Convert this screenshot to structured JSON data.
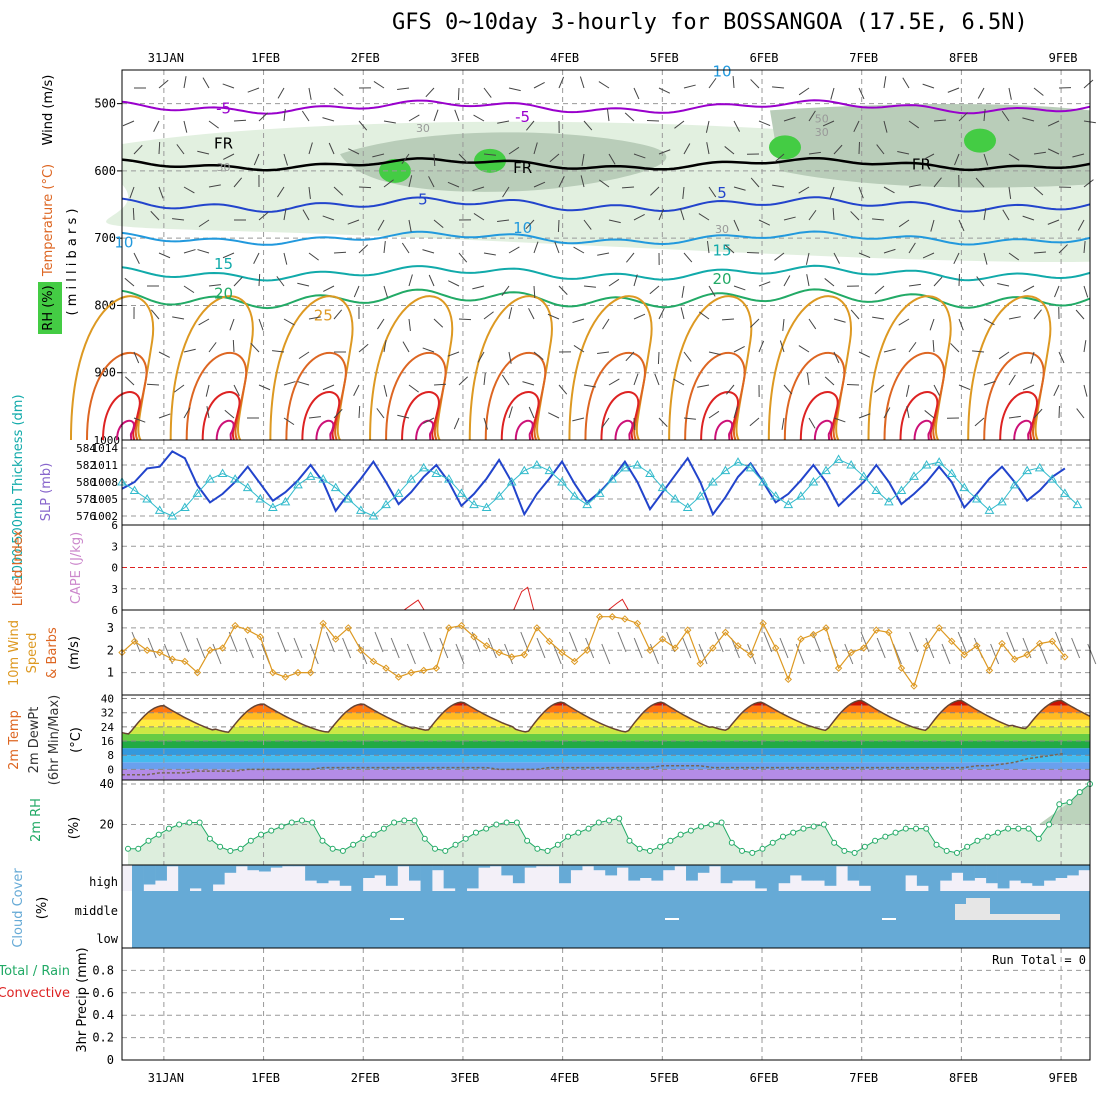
{
  "title": "GFS 0~10day 3-hourly for BOSSANGOA (17.5E, 6.5N)",
  "colors": {
    "purple": "#9900cc",
    "blue": "#2244cc",
    "lightblue": "#2299dd",
    "teal": "#11aaaa",
    "green": "#22aa66",
    "orange": "#dd9922",
    "darkorange": "#dd6622",
    "red": "#dd2222",
    "rhgreen": "#44cc44",
    "cyan": "#33bbcc",
    "cloud": "#66aad6",
    "cloudbg": "#f3f0f8"
  },
  "chart_data": [
    {
      "id": "upper-air",
      "type": "contour",
      "ylabel_parts": [
        "Wind (m/s)",
        "Temperature (°C)"
      ],
      "ylabel2": "( m i l l i b a r s )",
      "rh_label": "RH (%)",
      "yticks": [
        500,
        600,
        700,
        800,
        900,
        1000
      ],
      "ylim": [
        1000,
        450
      ],
      "temperature_labels": [
        {
          "text": "-5",
          "date": "1FEB",
          "p": 515
        },
        {
          "text": "-5",
          "date": "4FEB",
          "p": 527
        },
        {
          "text": "FR",
          "date": "1FEB",
          "p": 567
        },
        {
          "text": "FR",
          "date": "4FEB",
          "p": 603
        },
        {
          "text": "FR",
          "date": "8FEB",
          "p": 598
        },
        {
          "text": "5",
          "date": "3FEB",
          "p": 650
        },
        {
          "text": "5",
          "date": "6FEB",
          "p": 640
        },
        {
          "text": "10",
          "date": "31JAN",
          "p": 714
        },
        {
          "text": "10",
          "date": "4FEB",
          "p": 692
        },
        {
          "text": "15",
          "date": "1FEB",
          "p": 746
        },
        {
          "text": "15",
          "date": "6FEB",
          "p": 726
        },
        {
          "text": "20",
          "date": "1FEB",
          "p": 790
        },
        {
          "text": "20",
          "date": "6FEB",
          "p": 768
        },
        {
          "text": "25",
          "date": "2FEB",
          "p": 822
        },
        {
          "text": "10",
          "date": "6FEB",
          "p": 460
        },
        {
          "text": "30",
          "date": "3FEB",
          "p": 542
        },
        {
          "text": "30",
          "date": "7FEB",
          "p": 548
        },
        {
          "text": "30",
          "date": "6FEB",
          "p": 692
        },
        {
          "text": "50",
          "date": "7FEB",
          "p": 528
        },
        {
          "text": "30",
          "date": "1FEB",
          "p": 600
        }
      ]
    },
    {
      "id": "thickness-slp",
      "type": "line",
      "ylabel_left": "1000-500mb Thickness (dm)",
      "ylabel_right": "SLP (mb)",
      "yticks_left": [
        576,
        578,
        580,
        582,
        584
      ],
      "yticks_right": [
        1002,
        1005,
        1008,
        1011,
        1014
      ],
      "thickness": [
        579.2,
        580.0,
        581.6,
        581.8,
        583.6,
        582.8,
        579.6,
        577.6,
        578.6,
        580.0,
        581.8,
        579.8,
        577.8,
        578.8,
        580.2,
        582.0,
        580.0,
        576.6,
        578.6,
        580.4,
        582.4,
        580.0,
        577.4,
        578.8,
        580.6,
        582.0,
        580.0,
        577.2,
        578.6,
        580.4,
        582.6,
        580.0,
        576.2,
        578.6,
        580.4,
        582.4,
        579.8,
        577.6,
        578.8,
        580.4,
        582.4,
        580.0,
        576.8,
        578.8,
        580.8,
        582.8,
        580.0,
        576.2,
        578.2,
        580.6,
        582.2,
        580.0,
        577.6,
        578.6,
        580.2,
        582.0,
        580.0,
        577.2,
        578.6,
        580.0,
        582.0,
        580.0,
        577.4,
        578.6,
        580.0,
        581.8,
        580.0,
        577.0,
        578.6,
        580.4,
        581.8,
        580.0,
        577.8,
        579.0,
        580.6,
        581.6
      ],
      "slp": [
        1008.0,
        1006.5,
        1005.0,
        1003.0,
        1002.0,
        1003.5,
        1006.0,
        1008.5,
        1009.5,
        1008.5,
        1007.0,
        1005.0,
        1003.5,
        1004.5,
        1007.5,
        1009.0,
        1008.5,
        1007.0,
        1005.0,
        1003.0,
        1002.0,
        1004.0,
        1006.0,
        1008.5,
        1010.5,
        1009.5,
        1008.5,
        1006.0,
        1004.0,
        1003.5,
        1005.5,
        1008.0,
        1010.0,
        1011.0,
        1010.0,
        1008.0,
        1005.5,
        1004.0,
        1006.0,
        1008.5,
        1010.5,
        1011.0,
        1009.5,
        1007.0,
        1005.0,
        1003.5,
        1005.5,
        1008.0,
        1010.0,
        1011.5,
        1010.5,
        1008.0,
        1005.5,
        1004.0,
        1005.5,
        1008.0,
        1010.0,
        1012.0,
        1011.0,
        1009.0,
        1006.5,
        1004.5,
        1006.5,
        1009.0,
        1011.0,
        1011.5,
        1009.5,
        1007.0,
        1005.0,
        1003.0,
        1004.5,
        1007.5,
        1010.0,
        1010.5,
        1008.5,
        1006.0,
        1004.0
      ]
    },
    {
      "id": "lifted-index-cape",
      "type": "line",
      "ylabel_left": "Lifted Index",
      "ylabel_right": "CAPE (J/kg)",
      "yticks": [
        -6,
        -3,
        0,
        3,
        6
      ],
      "tick_labels": [
        "6",
        "3",
        "0",
        "3",
        "6"
      ],
      "cape_spikes": [
        {
          "date": "2FEB",
          "offset": 0.55,
          "peak": 4.6
        },
        {
          "date": "3FEB",
          "offset": 0.65,
          "peak": 2.8
        },
        {
          "date": "4FEB",
          "offset": 0.6,
          "peak": 4.5
        }
      ]
    },
    {
      "id": "wind-10m",
      "type": "line",
      "ylabel_parts": [
        "10m Wind",
        "Speed",
        "& Barbs"
      ],
      "yunit": "(m/s)",
      "yticks": [
        1,
        2,
        3
      ],
      "ylim": [
        0,
        3.8
      ],
      "speed": [
        1.9,
        2.4,
        2.0,
        1.9,
        1.6,
        1.5,
        1.0,
        2.0,
        2.1,
        3.1,
        2.9,
        2.6,
        1.0,
        0.8,
        1.0,
        1.0,
        3.2,
        2.5,
        3.0,
        2.0,
        1.5,
        1.2,
        0.8,
        1.0,
        1.1,
        1.2,
        3.0,
        3.1,
        2.6,
        2.2,
        1.9,
        1.7,
        1.8,
        3.0,
        2.4,
        1.9,
        1.5,
        2.0,
        3.5,
        3.5,
        3.4,
        3.2,
        2.0,
        2.5,
        2.1,
        2.9,
        1.4,
        2.1,
        2.8,
        2.2,
        1.8,
        3.2,
        2.1,
        0.7,
        2.5,
        2.7,
        3.0,
        1.2,
        1.9,
        2.1,
        2.9,
        2.8,
        1.2,
        0.4,
        2.2,
        3.0,
        2.4,
        1.8,
        2.2,
        1.1,
        2.3,
        1.6,
        1.8,
        2.3,
        2.4,
        1.7
      ]
    },
    {
      "id": "temp-2m",
      "type": "area",
      "ylabel_parts": [
        "2m Temp",
        "2m DewPt",
        "(6hr Min/Max)"
      ],
      "yunit": "(°C)",
      "yticks": [
        0,
        8,
        16,
        24,
        32,
        40
      ],
      "ylim": [
        -6,
        42
      ],
      "daily_min": [
        20,
        21,
        21,
        22,
        21,
        21,
        22,
        22,
        22,
        23
      ],
      "daily_max": [
        36,
        37,
        37,
        38,
        38,
        38,
        38,
        39,
        39,
        39
      ],
      "dewpoint": [
        -3,
        -3,
        -3,
        -2,
        -2,
        -2,
        -1,
        -1,
        -1,
        -1,
        0,
        0,
        0,
        0,
        0,
        0,
        1,
        1,
        1,
        1,
        1,
        1,
        1,
        1,
        1,
        1,
        1,
        1,
        1,
        1,
        0,
        0,
        0,
        0,
        1,
        1,
        1,
        1,
        1,
        1,
        1,
        1,
        1,
        2,
        2,
        2,
        2,
        1,
        1,
        1,
        1,
        1,
        1,
        1,
        1,
        1,
        1,
        1,
        1,
        1,
        1,
        1,
        1,
        1,
        1,
        1,
        1,
        1,
        2,
        2,
        3,
        4,
        6,
        7,
        8,
        9
      ]
    },
    {
      "id": "rh-2m",
      "type": "area",
      "ylabel": "2m RH",
      "yunit": "(%)",
      "yticks": [
        20,
        40
      ],
      "ylim": [
        0,
        42
      ],
      "rh": [
        8,
        8,
        12,
        15,
        18,
        20,
        21,
        21,
        13,
        9,
        7,
        8,
        12,
        15,
        17,
        19,
        21,
        22,
        21,
        12,
        8,
        7,
        10,
        13,
        15,
        18,
        21,
        22,
        22,
        13,
        8,
        7,
        10,
        13,
        16,
        18,
        20,
        21,
        21,
        12,
        8,
        7,
        10,
        14,
        16,
        18,
        21,
        22,
        23,
        12,
        8,
        7,
        9,
        12,
        15,
        17,
        19,
        20,
        21,
        11,
        7,
        6,
        8,
        11,
        14,
        16,
        18,
        19,
        20,
        11,
        7,
        6,
        9,
        12,
        14,
        16,
        18,
        18,
        18,
        10,
        7,
        6,
        9,
        12,
        14,
        16,
        18,
        18,
        18,
        13,
        20,
        30,
        31,
        36,
        40
      ]
    },
    {
      "id": "cloud-cover",
      "type": "bar",
      "ylabel": "Cloud Cover",
      "yunit": "(%)",
      "layers": [
        "high",
        "middle",
        "low"
      ],
      "high": [
        100,
        75,
        60,
        5,
        100,
        90,
        100,
        75,
        30,
        5,
        20,
        25,
        10,
        5,
        5,
        60,
        70,
        60,
        80,
        100,
        50,
        40,
        80,
        5,
        60,
        100,
        20,
        90,
        100,
        90,
        10,
        5,
        40,
        70,
        10,
        5,
        5,
        70,
        20,
        5,
        20,
        40,
        10,
        60,
        50,
        60,
        20,
        5,
        60,
        30,
        5,
        70,
        60,
        60,
        90,
        100,
        70,
        40,
        60,
        60,
        80,
        5,
        60,
        80,
        100,
        100,
        100,
        40,
        80,
        100,
        60,
        30,
        60,
        50,
        70,
        90,
        60,
        70,
        80,
        60,
        50,
        40,
        20
      ]
    },
    {
      "id": "precip",
      "type": "bar",
      "ylabel": "3hr Precip (mm)",
      "legend_left": "Total / Rain",
      "legend_left2": "Convective",
      "annotation": "Run Total = 0",
      "yticks": [
        0,
        0.2,
        0.4,
        0.6,
        0.8
      ],
      "tick_labels": [
        "0",
        "0.2",
        "0.4",
        "0.6",
        "0.8"
      ],
      "ylim": [
        0,
        1.0
      ],
      "values": []
    }
  ],
  "x_axis": {
    "dates": [
      "31JAN",
      "1FEB",
      "2FEB",
      "3FEB",
      "4FEB",
      "5FEB",
      "6FEB",
      "7FEB",
      "8FEB",
      "9FEB"
    ],
    "start_offset_days": -0.42,
    "end_offset_days": 9.29
  }
}
